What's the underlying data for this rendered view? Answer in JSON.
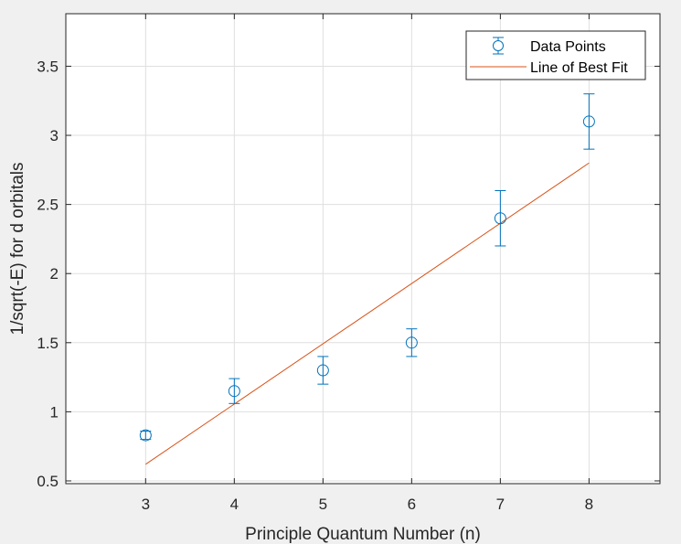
{
  "chart_data": {
    "type": "scatter",
    "xlabel": "Principle Quantum Number (n)",
    "ylabel": "1/sqrt(-E) for d orbitals",
    "xlim": [
      2.1,
      8.8
    ],
    "ylim": [
      0.48,
      3.88
    ],
    "x_ticks": [
      3,
      4,
      5,
      6,
      7,
      8
    ],
    "y_ticks": [
      0.5,
      1,
      1.5,
      2,
      2.5,
      3,
      3.5
    ],
    "x_tick_labels": [
      "3",
      "4",
      "5",
      "6",
      "7",
      "8"
    ],
    "y_tick_labels": [
      "0.5",
      "1",
      "1.5",
      "2",
      "2.5",
      "3",
      "3.5"
    ],
    "grid": true,
    "legend_position": "top-right",
    "series": [
      {
        "name": "Data Points",
        "kind": "errorbar",
        "color": "#0072bd",
        "x": [
          3,
          4,
          5,
          6,
          7,
          8
        ],
        "y": [
          0.83,
          1.15,
          1.3,
          1.5,
          2.4,
          3.1
        ],
        "err": [
          0.03,
          0.09,
          0.1,
          0.1,
          0.2,
          0.2
        ]
      },
      {
        "name": "Line of Best Fit",
        "kind": "line",
        "color": "#d95319",
        "x": [
          3,
          8
        ],
        "y": [
          0.62,
          2.8
        ]
      }
    ]
  }
}
